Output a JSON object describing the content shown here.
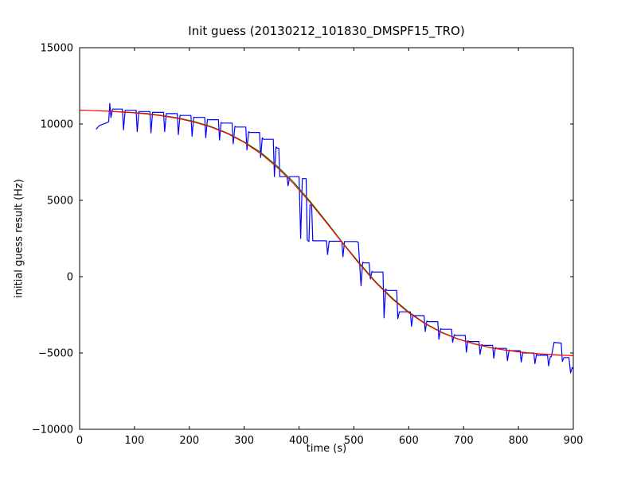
{
  "figure": {
    "background": "#ffffff",
    "frame_color": "#000000"
  },
  "chart_data": {
    "type": "line",
    "title": "Init guess (20130212_101830_DMSPF15_TRO)",
    "xlabel": "time (s)",
    "ylabel": "initial guess result (Hz)",
    "xlim": [
      0,
      900
    ],
    "ylim": [
      -10000,
      15000
    ],
    "xticks": [
      0,
      100,
      200,
      300,
      400,
      500,
      600,
      700,
      800,
      900
    ],
    "yticks": [
      -10000,
      -5000,
      0,
      5000,
      10000,
      15000
    ],
    "grid": false,
    "legend_position": "none",
    "series": [
      {
        "name": "blue",
        "color": "#0000ff",
        "points": [
          [
            30,
            9650
          ],
          [
            36,
            9900
          ],
          [
            48,
            10060
          ],
          [
            53,
            10150
          ],
          [
            55,
            11350
          ],
          [
            57,
            10420
          ],
          [
            60,
            10980
          ],
          [
            78,
            10980
          ],
          [
            80,
            9620
          ],
          [
            83,
            10900
          ],
          [
            85,
            10900
          ],
          [
            103,
            10900
          ],
          [
            105,
            9500
          ],
          [
            108,
            10820
          ],
          [
            110,
            10820
          ],
          [
            128,
            10820
          ],
          [
            130,
            9420
          ],
          [
            133,
            10760
          ],
          [
            135,
            10760
          ],
          [
            153,
            10760
          ],
          [
            155,
            9500
          ],
          [
            158,
            10680
          ],
          [
            160,
            10680
          ],
          [
            178,
            10680
          ],
          [
            180,
            9300
          ],
          [
            183,
            10580
          ],
          [
            185,
            10560
          ],
          [
            203,
            10560
          ],
          [
            205,
            9200
          ],
          [
            208,
            10450
          ],
          [
            210,
            10430
          ],
          [
            228,
            10430
          ],
          [
            230,
            9100
          ],
          [
            233,
            10300
          ],
          [
            235,
            10280
          ],
          [
            253,
            10280
          ],
          [
            255,
            8950
          ],
          [
            258,
            10100
          ],
          [
            260,
            10060
          ],
          [
            278,
            10060
          ],
          [
            280,
            8700
          ],
          [
            283,
            9850
          ],
          [
            285,
            9800
          ],
          [
            303,
            9800
          ],
          [
            305,
            8300
          ],
          [
            308,
            9500
          ],
          [
            310,
            9450
          ],
          [
            328,
            9450
          ],
          [
            330,
            7800
          ],
          [
            333,
            9100
          ],
          [
            335,
            9000
          ],
          [
            353,
            9000
          ],
          [
            355,
            6550
          ],
          [
            358,
            8500
          ],
          [
            360,
            8420
          ],
          [
            363,
            8420
          ],
          [
            365,
            6550
          ],
          [
            378,
            6550
          ],
          [
            380,
            5950
          ],
          [
            383,
            6550
          ],
          [
            385,
            6550
          ],
          [
            400,
            6550
          ],
          [
            403,
            2500
          ],
          [
            406,
            6420
          ],
          [
            408,
            6420
          ],
          [
            413,
            6420
          ],
          [
            415,
            2400
          ],
          [
            418,
            2300
          ],
          [
            420,
            4700
          ],
          [
            423,
            4700
          ],
          [
            425,
            2350
          ],
          [
            428,
            2350
          ],
          [
            450,
            2350
          ],
          [
            452,
            1450
          ],
          [
            455,
            2320
          ],
          [
            457,
            2320
          ],
          [
            478,
            2320
          ],
          [
            480,
            1300
          ],
          [
            483,
            2300
          ],
          [
            485,
            2300
          ],
          [
            505,
            2300
          ],
          [
            508,
            2250
          ],
          [
            513,
            -600
          ],
          [
            516,
            950
          ],
          [
            518,
            900
          ],
          [
            528,
            900
          ],
          [
            530,
            -150
          ],
          [
            533,
            350
          ],
          [
            535,
            300
          ],
          [
            553,
            300
          ],
          [
            555,
            -2700
          ],
          [
            558,
            -800
          ],
          [
            560,
            -900
          ],
          [
            578,
            -900
          ],
          [
            580,
            -2750
          ],
          [
            583,
            -2300
          ],
          [
            585,
            -2300
          ],
          [
            603,
            -2300
          ],
          [
            605,
            -3250
          ],
          [
            608,
            -2500
          ],
          [
            610,
            -2550
          ],
          [
            628,
            -2550
          ],
          [
            630,
            -3600
          ],
          [
            633,
            -2900
          ],
          [
            635,
            -2950
          ],
          [
            653,
            -2950
          ],
          [
            655,
            -4100
          ],
          [
            658,
            -3400
          ],
          [
            660,
            -3450
          ],
          [
            678,
            -3450
          ],
          [
            680,
            -4300
          ],
          [
            683,
            -3800
          ],
          [
            685,
            -3850
          ],
          [
            703,
            -3850
          ],
          [
            705,
            -4950
          ],
          [
            708,
            -4200
          ],
          [
            710,
            -4250
          ],
          [
            728,
            -4250
          ],
          [
            730,
            -5100
          ],
          [
            733,
            -4450
          ],
          [
            735,
            -4500
          ],
          [
            753,
            -4500
          ],
          [
            755,
            -5350
          ],
          [
            758,
            -4650
          ],
          [
            760,
            -4700
          ],
          [
            778,
            -4700
          ],
          [
            780,
            -5500
          ],
          [
            783,
            -4800
          ],
          [
            785,
            -4850
          ],
          [
            803,
            -4850
          ],
          [
            805,
            -5600
          ],
          [
            808,
            -4950
          ],
          [
            810,
            -5000
          ],
          [
            828,
            -5000
          ],
          [
            830,
            -5700
          ],
          [
            833,
            -5100
          ],
          [
            835,
            -5150
          ],
          [
            853,
            -5150
          ],
          [
            855,
            -5850
          ],
          [
            858,
            -5250
          ],
          [
            860,
            -5250
          ],
          [
            865,
            -4300
          ],
          [
            875,
            -4350
          ],
          [
            878,
            -4350
          ],
          [
            880,
            -5550
          ],
          [
            883,
            -5300
          ],
          [
            885,
            -5300
          ],
          [
            892,
            -5300
          ],
          [
            895,
            -6300
          ],
          [
            898,
            -5950
          ],
          [
            900,
            -6050
          ]
        ]
      },
      {
        "name": "green",
        "color": "#008000",
        "points": [
          [
            55,
            10850
          ],
          [
            60,
            10830
          ],
          [
            90,
            10760
          ],
          [
            120,
            10700
          ],
          [
            150,
            10560
          ],
          [
            180,
            10390
          ],
          [
            210,
            10150
          ],
          [
            240,
            9830
          ],
          [
            270,
            9400
          ],
          [
            300,
            8830
          ],
          [
            330,
            8150
          ],
          [
            360,
            7250
          ],
          [
            390,
            6200
          ],
          [
            420,
            4950
          ],
          [
            450,
            3600
          ],
          [
            480,
            2200
          ],
          [
            510,
            900
          ],
          [
            540,
            -350
          ],
          [
            570,
            -1400
          ],
          [
            600,
            -2320
          ],
          [
            630,
            -3060
          ],
          [
            660,
            -3640
          ],
          [
            690,
            -4080
          ],
          [
            720,
            -4400
          ],
          [
            750,
            -4650
          ],
          [
            780,
            -4830
          ],
          [
            810,
            -4960
          ],
          [
            840,
            -5060
          ],
          [
            870,
            -5130
          ],
          [
            880,
            -5145
          ]
        ]
      },
      {
        "name": "red",
        "color": "#ff0000",
        "points": [
          [
            0,
            10911
          ],
          [
            30,
            10875
          ],
          [
            60,
            10829
          ],
          [
            90,
            10763
          ],
          [
            120,
            10671
          ],
          [
            150,
            10540
          ],
          [
            180,
            10364
          ],
          [
            210,
            10117
          ],
          [
            240,
            9796
          ],
          [
            270,
            9367
          ],
          [
            300,
            8795
          ],
          [
            330,
            8066
          ],
          [
            360,
            7167
          ],
          [
            390,
            6094
          ],
          [
            420,
            4867
          ],
          [
            450,
            3535
          ],
          [
            480,
            2165
          ],
          [
            510,
            833
          ],
          [
            540,
            -394
          ],
          [
            570,
            -1467
          ],
          [
            600,
            -2366
          ],
          [
            630,
            -3095
          ],
          [
            660,
            -3667
          ],
          [
            690,
            -4096
          ],
          [
            720,
            -4417
          ],
          [
            750,
            -4664
          ],
          [
            780,
            -4840
          ],
          [
            810,
            -4971
          ],
          [
            840,
            -5063
          ],
          [
            870,
            -5129
          ],
          [
            900,
            -5175
          ]
        ]
      }
    ]
  }
}
